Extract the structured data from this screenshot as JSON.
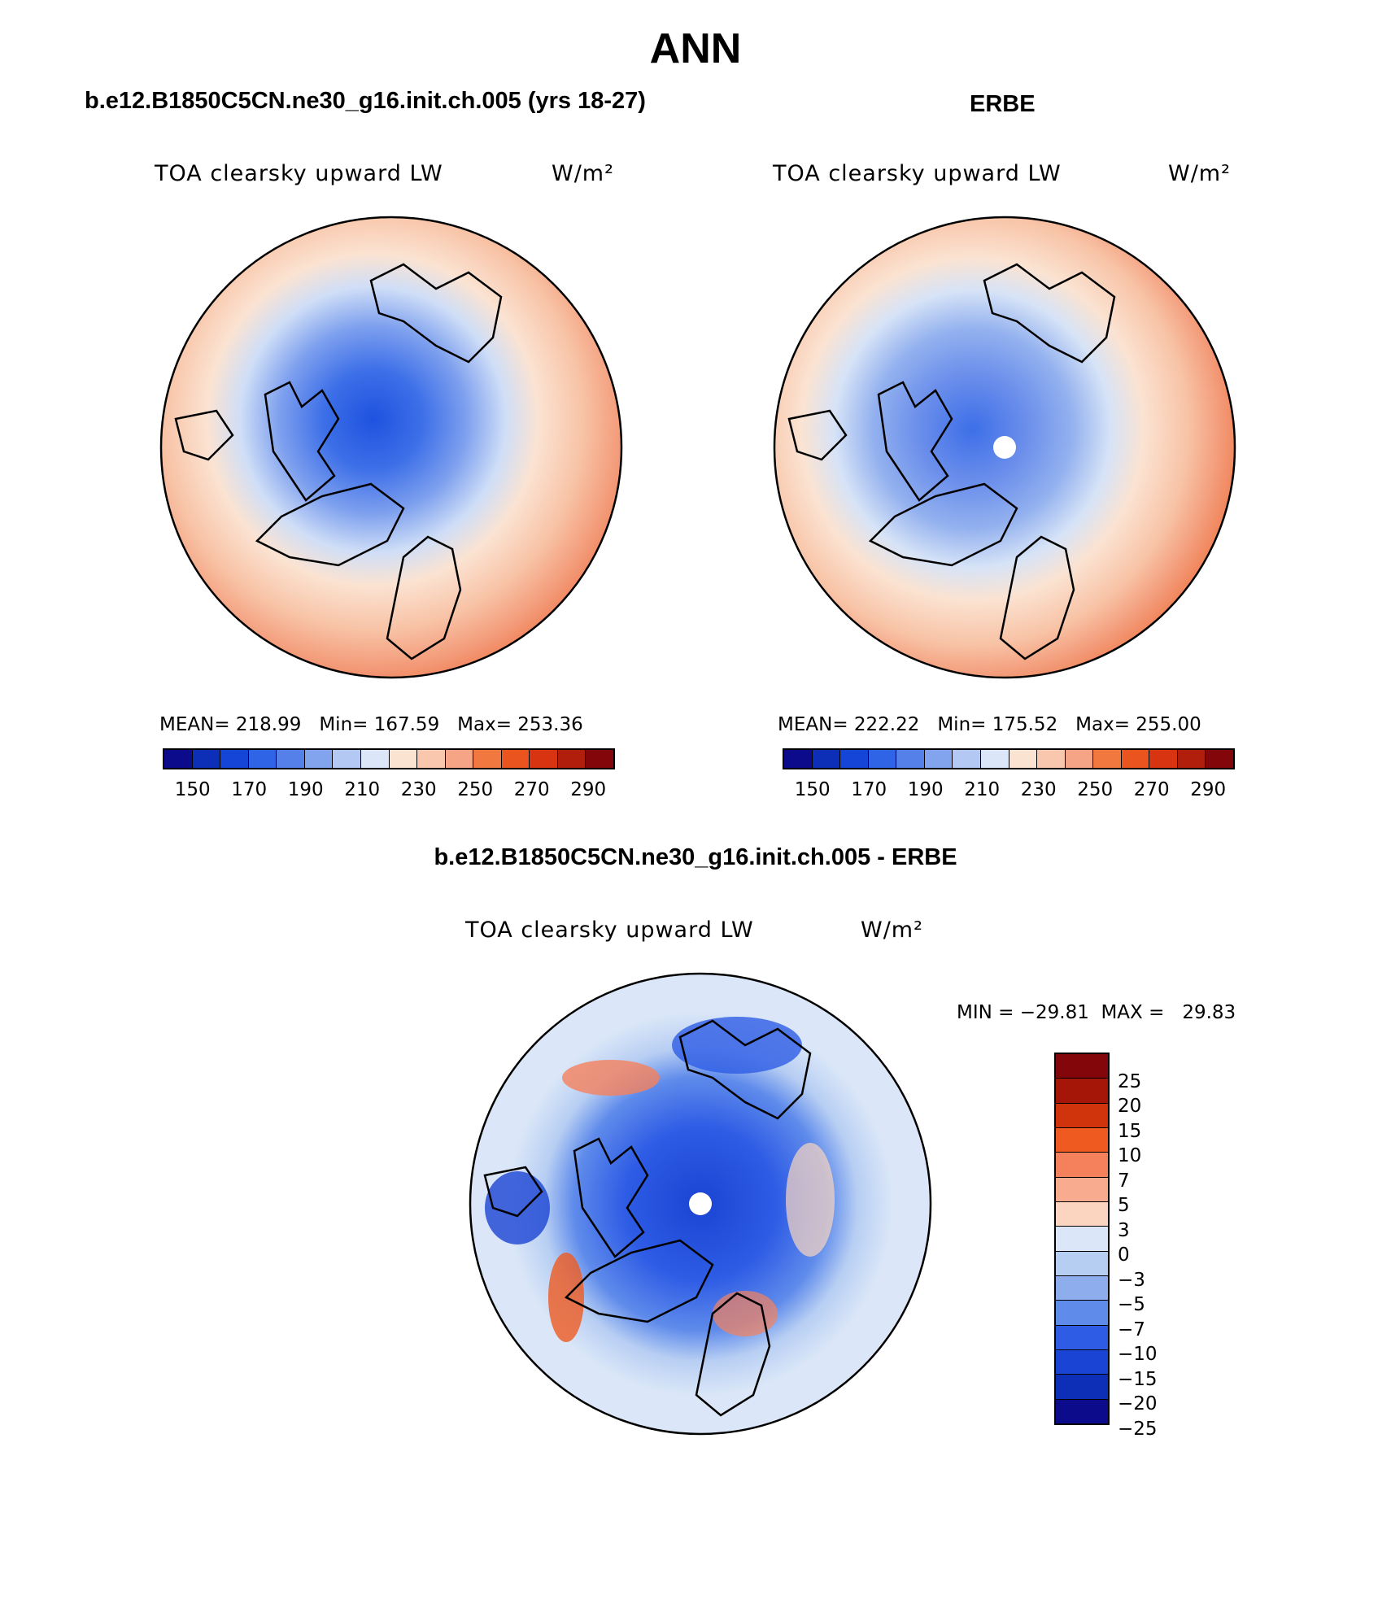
{
  "title": "ANN",
  "panels": {
    "model": {
      "title": "b.e12.B1850C5CN.ne30_g16.init.ch.005 (yrs 18-27)",
      "variable": "TOA clearsky upward LW",
      "units": "W/m²",
      "mean_label": "MEAN= 218.99",
      "min_label": "Min= 167.59",
      "max_label": "Max= 253.36"
    },
    "obs": {
      "title": "ERBE",
      "variable": "TOA clearsky upward LW",
      "units": "W/m²",
      "mean_label": "MEAN= 222.22",
      "min_label": "Min= 175.52",
      "max_label": "Max= 255.00"
    },
    "diff": {
      "title": "b.e12.B1850C5CN.ne30_g16.init.ch.005 - ERBE",
      "variable": "TOA clearsky upward LW",
      "units": "W/m²",
      "minmax_label": "MIN = −29.81  MAX =   29.83"
    }
  },
  "colorbar_abs": {
    "colors": [
      "#0b0b8c",
      "#0d2fb8",
      "#1545d6",
      "#2f64e6",
      "#5580ea",
      "#82a4ef",
      "#b3c9f3",
      "#dbe7f8",
      "#fbe3d2",
      "#f9c7ad",
      "#f5a486",
      "#f1793f",
      "#e9541f",
      "#d93411",
      "#b21e0c",
      "#82060a"
    ],
    "tick_labels": [
      "150",
      "170",
      "190",
      "210",
      "230",
      "250",
      "270",
      "290"
    ]
  },
  "colorbar_diff": {
    "colors": [
      "#82060a",
      "#a51609",
      "#d0340d",
      "#ee5a20",
      "#f5815c",
      "#f8ab8e",
      "#fbd5c0",
      "#dbe7f8",
      "#b7cef3",
      "#8eaded",
      "#5f8beb",
      "#2e5ce5",
      "#1a44d3",
      "#0d2fb8",
      "#0b0b8c"
    ],
    "labels": [
      "25",
      "20",
      "15",
      "10",
      "7",
      "5",
      "3",
      "0",
      "−3",
      "−5",
      "−7",
      "−10",
      "−15",
      "−20",
      "−25"
    ]
  }
}
